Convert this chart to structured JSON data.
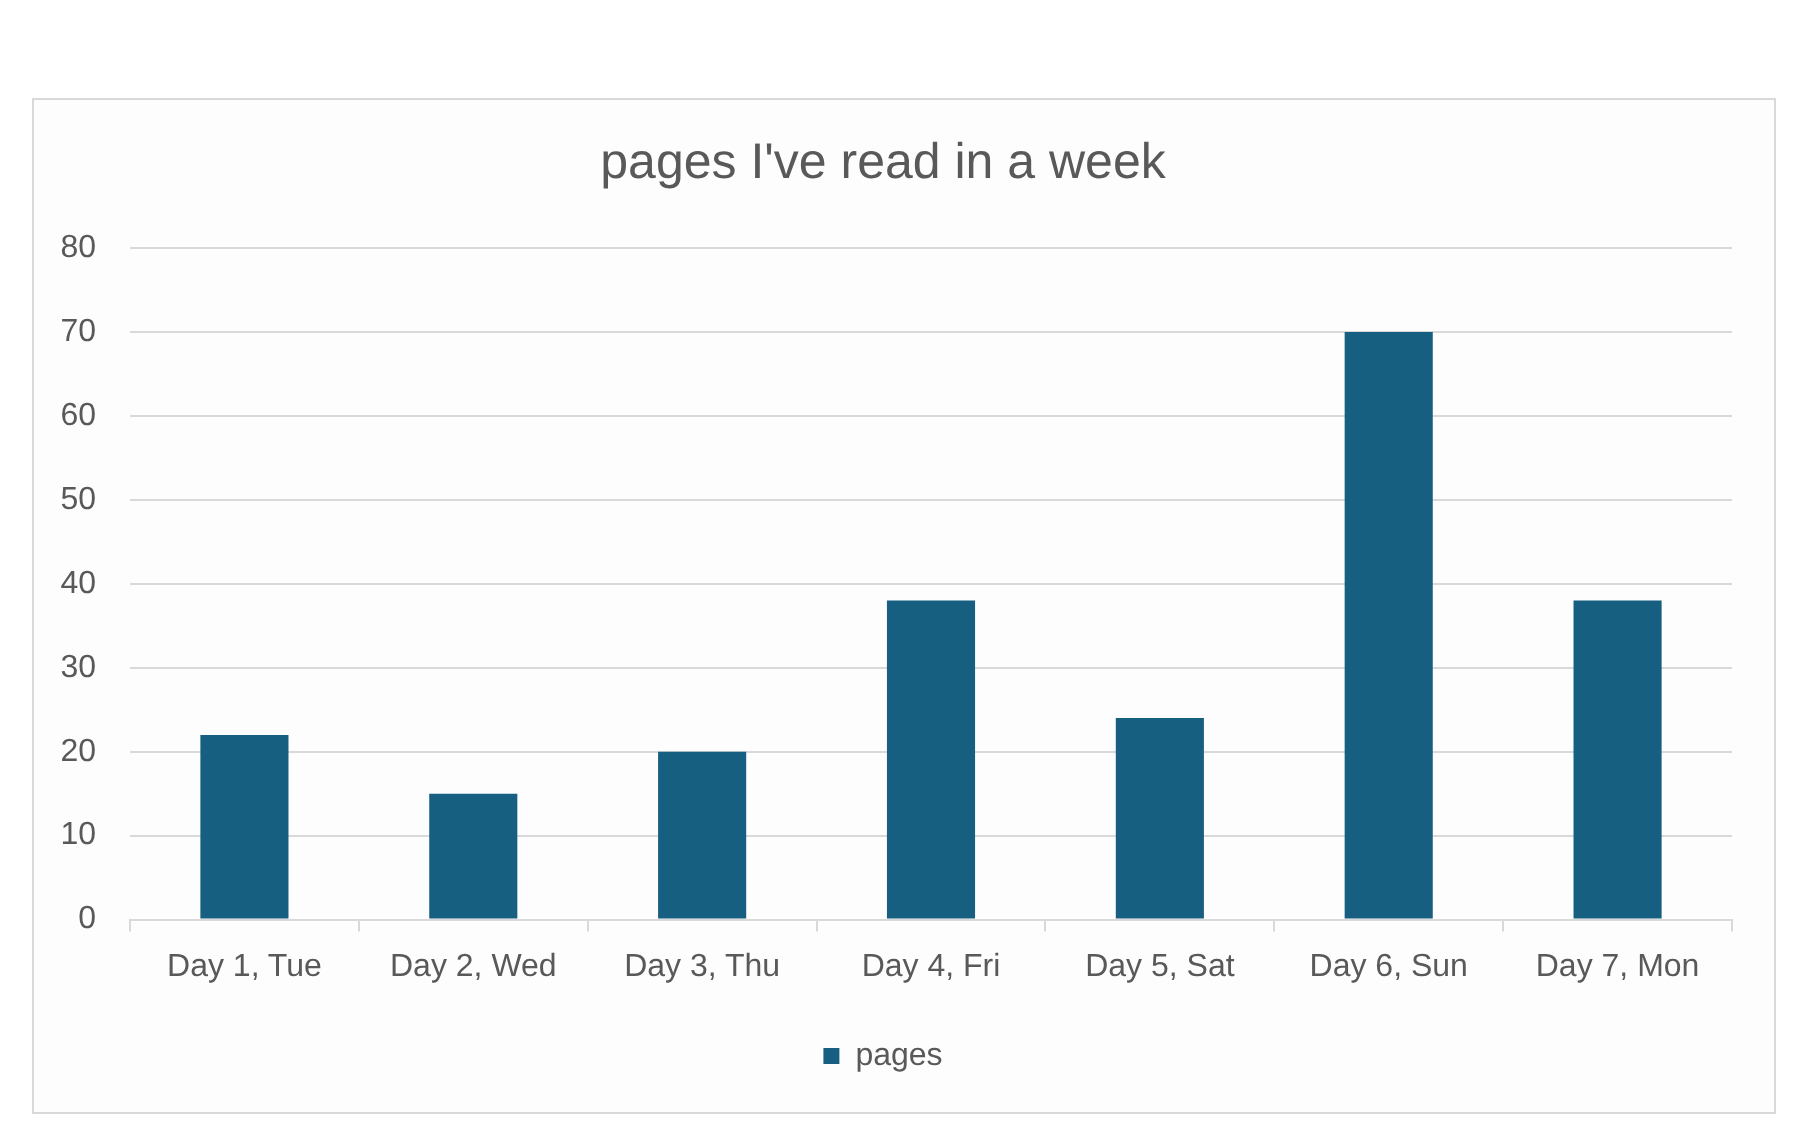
{
  "chart_data": {
    "type": "bar",
    "title": "pages I've read in a week",
    "categories": [
      "Day 1, Tue",
      "Day 2, Wed",
      "Day 3, Thu",
      "Day 4, Fri",
      "Day 5, Sat",
      "Day 6, Sun",
      "Day 7, Mon"
    ],
    "series": [
      {
        "name": "pages",
        "color": "#175f80",
        "values": [
          22,
          15,
          20,
          38,
          24,
          70,
          38
        ]
      }
    ],
    "ylim": [
      0,
      80
    ],
    "yticks": [
      0,
      10,
      20,
      30,
      40,
      50,
      60,
      70,
      80
    ],
    "grid": "y",
    "legend": "bottom"
  }
}
